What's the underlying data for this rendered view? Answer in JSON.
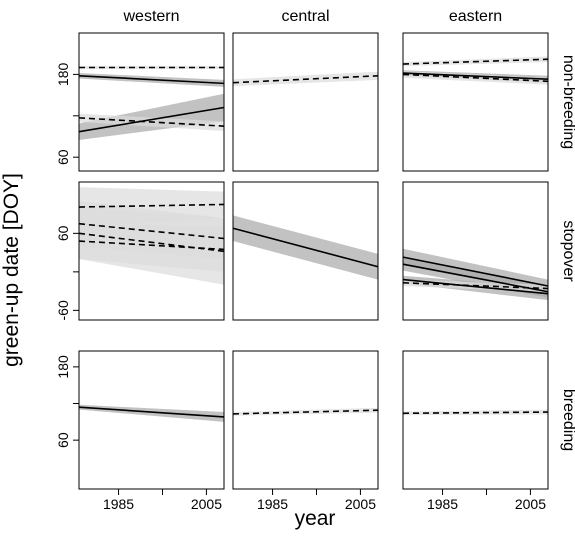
{
  "chart_data": {
    "type": "line",
    "xlabel": "year",
    "ylabel": "green-up date [DOY]",
    "columns": [
      "western",
      "central",
      "eastern"
    ],
    "xlim": [
      1976,
      2009
    ],
    "xticks": [
      1985,
      {
        "value": 1995,
        "label": null
      },
      2005
    ],
    "x": [
      1976,
      2009
    ],
    "rows": [
      {
        "label": "non-breeding",
        "ylim": [
          40,
          240
        ],
        "yticks": [
          60,
          {
            "value": 120,
            "label": null
          },
          180
        ],
        "panels": [
          [
            {
              "style": "dashed",
              "values": [
                190,
                190
              ],
              "lower": [
                188,
                188
              ],
              "upper": [
                192,
                192
              ]
            },
            {
              "style": "solid",
              "values": [
                178,
                167
              ],
              "lower": [
                174,
                162
              ],
              "upper": [
                182,
                172
              ]
            },
            {
              "style": "solid",
              "values": [
                97,
                132
              ],
              "lower": [
                85,
                112
              ],
              "upper": [
                109,
                152
              ]
            },
            {
              "style": "dashed",
              "values": [
                117,
                105
              ],
              "lower": [
                111,
                98
              ],
              "upper": [
                123,
                112
              ]
            }
          ],
          [
            {
              "style": "dashed",
              "values": [
                168,
                178
              ],
              "lower": [
                163,
                172
              ],
              "upper": [
                173,
                184
              ]
            }
          ],
          [
            {
              "style": "dashed",
              "values": [
                195,
                202
              ],
              "lower": [
                192,
                198
              ],
              "upper": [
                198,
                206
              ]
            },
            {
              "style": "solid",
              "values": [
                182,
                173
              ],
              "lower": [
                178,
                168
              ],
              "upper": [
                186,
                178
              ]
            },
            {
              "style": "dashed",
              "values": [
                180,
                170
              ],
              "lower": [
                175,
                165
              ],
              "upper": [
                185,
                175
              ]
            }
          ]
        ]
      },
      {
        "label": "stopover",
        "ylim": [
          -75,
          140
        ],
        "yticks": [
          -60,
          {
            "value": 0,
            "label": null
          },
          60
        ],
        "panels": [
          [
            {
              "style": "dashed",
              "values": [
                101,
                105
              ],
              "lower": [
                70,
                85
              ],
              "upper": [
                132,
                125
              ]
            },
            {
              "style": "dashed",
              "values": [
                75,
                52
              ],
              "lower": [
                40,
                20
              ],
              "upper": [
                110,
                84
              ]
            },
            {
              "style": "dashed",
              "values": [
                60,
                32
              ],
              "lower": [
                20,
                -20
              ],
              "upper": [
                100,
                84
              ]
            },
            {
              "style": "dashed",
              "values": [
                48,
                35
              ],
              "lower": [
                20,
                0
              ],
              "upper": [
                76,
                70
              ]
            }
          ],
          [
            {
              "style": "solid",
              "values": [
                68,
                8
              ],
              "lower": [
                48,
                -12
              ],
              "upper": [
                88,
                28
              ]
            }
          ],
          [
            {
              "style": "solid",
              "values": [
                23,
                -22
              ],
              "lower": [
                10,
                -32
              ],
              "upper": [
                36,
                -12
              ]
            },
            {
              "style": "solid",
              "values": [
                12,
                -31
              ],
              "lower": [
                2,
                -40
              ],
              "upper": [
                22,
                -22
              ]
            },
            {
              "style": "solid",
              "values": [
                -12,
                -34
              ],
              "lower": [
                -18,
                -44
              ],
              "upper": [
                -6,
                -24
              ]
            },
            {
              "style": "dashed",
              "values": [
                -17,
                -26
              ],
              "lower": [
                -22,
                -32
              ],
              "upper": [
                -12,
                -20
              ]
            }
          ]
        ]
      },
      {
        "label": "breeding",
        "ylim": [
          -20,
          206
        ],
        "yticks": [
          60,
          {
            "value": 120,
            "label": null
          },
          180
        ],
        "panels": [
          [
            {
              "style": "solid",
              "values": [
                114,
                98
              ],
              "lower": [
                110,
                90
              ],
              "upper": [
                118,
                106
              ]
            }
          ],
          [
            {
              "style": "dashed",
              "values": [
                103,
                109
              ],
              "lower": [
                100,
                105
              ],
              "upper": [
                106,
                113
              ]
            }
          ],
          [
            {
              "style": "dashed",
              "values": [
                104,
                106
              ],
              "lower": [
                101,
                102
              ],
              "upper": [
                107,
                110
              ]
            }
          ]
        ]
      }
    ]
  }
}
